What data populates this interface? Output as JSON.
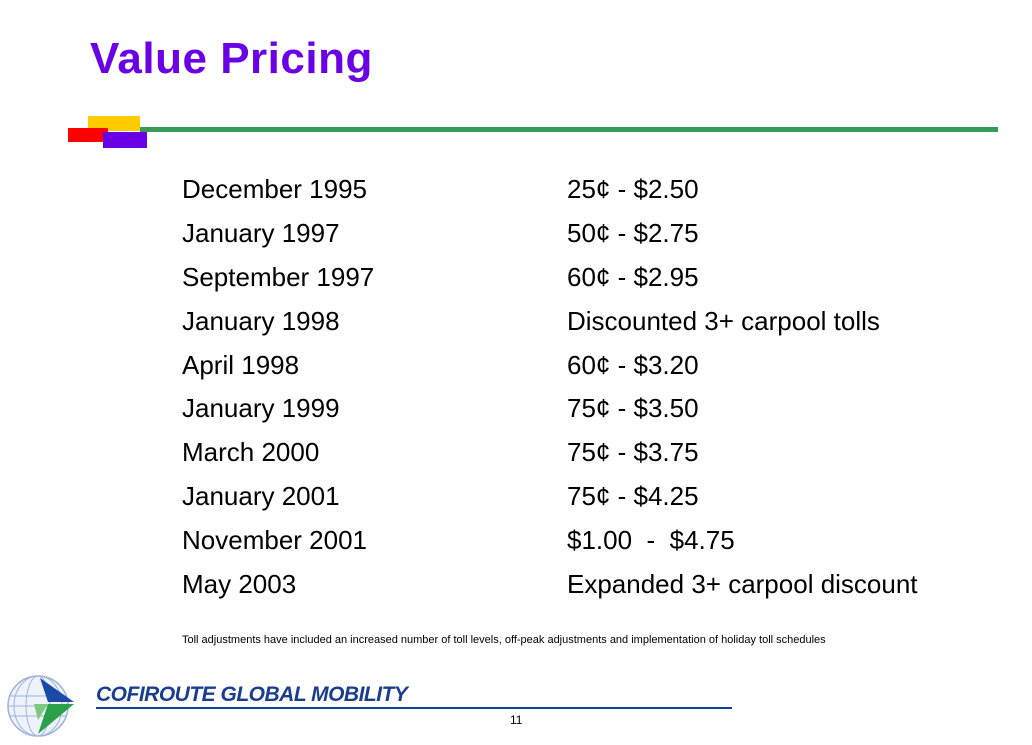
{
  "slide": {
    "title": "Value Pricing",
    "rows": [
      {
        "date": "December 1995",
        "price": "25¢ - $2.50"
      },
      {
        "date": "January 1997",
        "price": "50¢ - $2.75"
      },
      {
        "date": "September 1997",
        "price": "60¢ - $2.95"
      },
      {
        "date": "January 1998",
        "price": "Discounted 3+ carpool tolls"
      },
      {
        "date": "April 1998",
        "price": "60¢ - $3.20"
      },
      {
        "date": "January 1999",
        "price": "75¢ - $3.50"
      },
      {
        "date": "March 2000",
        "price": "75¢ - $3.75"
      },
      {
        "date": "January 2001",
        "price": "75¢ - $4.25"
      },
      {
        "date": "November 2001",
        "price": "$1.00  -  $4.75"
      },
      {
        "date": "May 2003",
        "price": "Expanded 3+ carpool discount"
      }
    ],
    "footnote": "Toll adjustments have included an increased number of toll levels, off-peak adjustments and implementation of holiday toll schedules",
    "brand": "COFIROUTE GLOBAL MOBILITY",
    "page_number": "11"
  },
  "colors": {
    "title": "#6a00e6",
    "rule": "#3a9a5a",
    "brand": "#1a3d8f",
    "accent_yellow": "#ffcc00",
    "accent_red": "#ff0000"
  },
  "icons": {
    "logo": "globe-logo"
  }
}
